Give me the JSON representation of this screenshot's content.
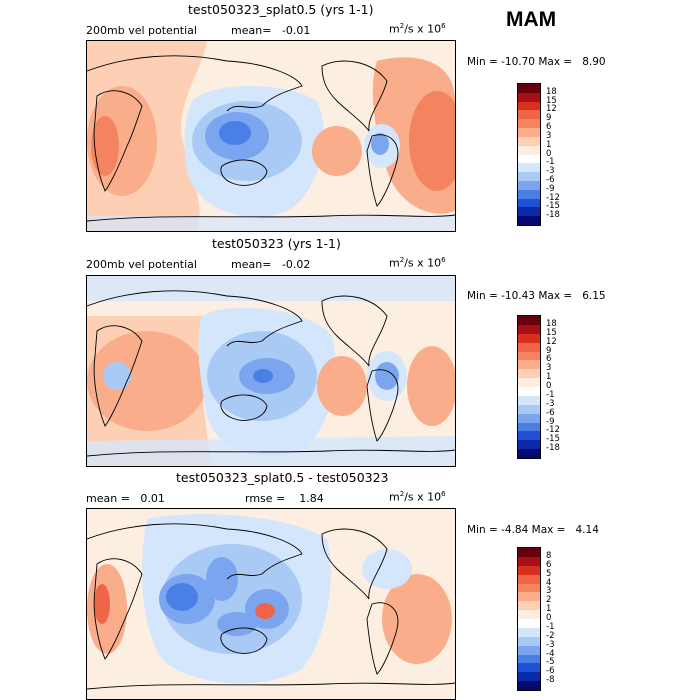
{
  "season": "MAM",
  "panels": [
    {
      "title": "test050323_splat0.5 (yrs 1-1)",
      "left_label": "200mb vel potential",
      "mean_label": "mean=",
      "mean_value": "-0.01",
      "rmse_label": "",
      "rmse_value": "",
      "units_base": "m",
      "units_mid": "/s x 10",
      "units_exp1": "2",
      "units_exp2": "6",
      "min_label": "Min =",
      "min_value": "-10.70",
      "max_label": "Max =",
      "max_value": "8.90",
      "levels": [
        "18",
        "15",
        "12",
        "9",
        "6",
        "3",
        "1",
        "0",
        "-1",
        "-3",
        "-6",
        "-9",
        "-12",
        "-15",
        "-18"
      ]
    },
    {
      "title": "test050323 (yrs 1-1)",
      "left_label": "200mb vel potential",
      "mean_label": "mean=",
      "mean_value": "-0.02",
      "rmse_label": "",
      "rmse_value": "",
      "units_base": "m",
      "units_mid": "/s x 10",
      "units_exp1": "2",
      "units_exp2": "6",
      "min_label": "Min =",
      "min_value": "-10.43",
      "max_label": "Max =",
      "max_value": "6.15",
      "levels": [
        "18",
        "15",
        "12",
        "9",
        "6",
        "3",
        "1",
        "0",
        "-1",
        "-3",
        "-6",
        "-9",
        "-12",
        "-15",
        "-18"
      ]
    },
    {
      "title": "test050323_splat0.5 - test050323",
      "left_label": "",
      "mean_label": "mean =",
      "mean_value": "0.01",
      "rmse_label": "rmse =",
      "rmse_value": "1.84",
      "units_base": "m",
      "units_mid": "/s x 10",
      "units_exp1": "2",
      "units_exp2": "6",
      "min_label": "Min =",
      "min_value": "-4.84",
      "max_label": "Max =",
      "max_value": "4.14",
      "levels": [
        "8",
        "6",
        "5",
        "4",
        "3",
        "2",
        "1",
        "0",
        "-1",
        "-2",
        "-3",
        "-4",
        "-5",
        "-6",
        "-8"
      ]
    }
  ],
  "colors": {
    "scale": [
      "#67000d",
      "#a50f15",
      "#d7301f",
      "#ef6548",
      "#f4845f",
      "#f9ad8b",
      "#fdd0b5",
      "#fdeee2",
      "#ffffff",
      "#d4e6fb",
      "#a9caf5",
      "#7ba6ef",
      "#4a7fe6",
      "#2150d3",
      "#0b2ba8",
      "#040a70"
    ]
  },
  "chart_data": [
    {
      "type": "heatmap",
      "title": "test050323_splat0.5 (yrs 1-1)",
      "variable": "200mb vel potential",
      "units": "m2/s x 10^6",
      "mean": -0.01,
      "min": -10.7,
      "max": 8.9,
      "levels": [
        18,
        15,
        12,
        9,
        6,
        3,
        1,
        0,
        -1,
        -3,
        -6,
        -9,
        -12,
        -15,
        -18
      ]
    },
    {
      "type": "heatmap",
      "title": "test050323 (yrs 1-1)",
      "variable": "200mb vel potential",
      "units": "m2/s x 10^6",
      "mean": -0.02,
      "min": -10.43,
      "max": 6.15,
      "levels": [
        18,
        15,
        12,
        9,
        6,
        3,
        1,
        0,
        -1,
        -3,
        -6,
        -9,
        -12,
        -15,
        -18
      ]
    },
    {
      "type": "heatmap",
      "title": "test050323_splat0.5 - test050323",
      "units": "m2/s x 10^6",
      "mean": 0.01,
      "rmse": 1.84,
      "min": -4.84,
      "max": 4.14,
      "levels": [
        8,
        6,
        5,
        4,
        3,
        2,
        1,
        0,
        -1,
        -2,
        -3,
        -4,
        -5,
        -6,
        -8
      ]
    }
  ]
}
